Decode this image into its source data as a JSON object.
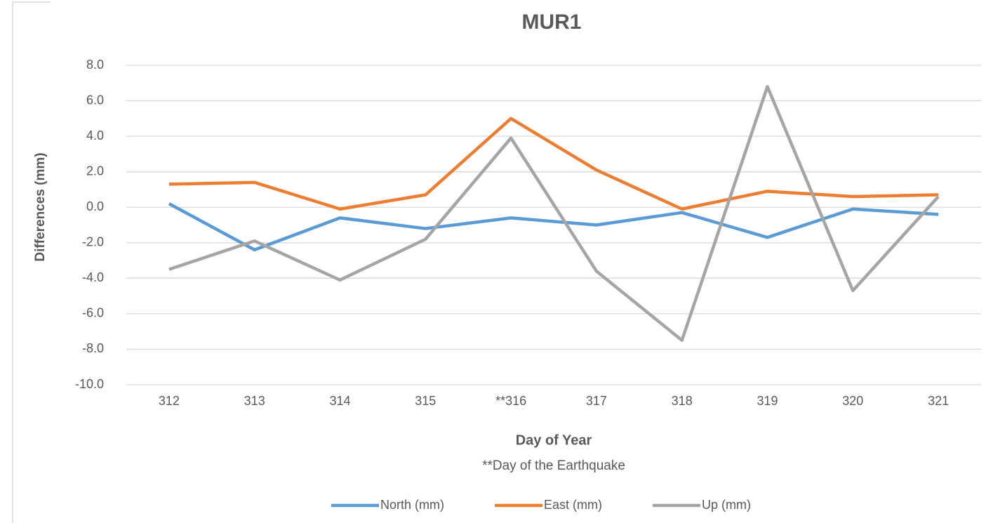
{
  "chart_data": {
    "type": "line",
    "title": "MUR1",
    "x_label": "Day of Year",
    "y_label": "Differences (mm)",
    "annotation": "**Day of the Earthquake",
    "categories": [
      "312",
      "313",
      "314",
      "315",
      "**316",
      "317",
      "318",
      "319",
      "320",
      "321"
    ],
    "series": [
      {
        "name": "North (mm)",
        "color": "#5b9bd5",
        "values": [
          0.2,
          -2.4,
          -0.6,
          -1.2,
          -0.6,
          -1.0,
          -0.3,
          -1.7,
          -0.1,
          -0.4
        ]
      },
      {
        "name": "East (mm)",
        "color": "#ed7d31",
        "values": [
          1.3,
          1.4,
          -0.1,
          0.7,
          5.0,
          2.1,
          -0.1,
          0.9,
          0.6,
          0.7
        ]
      },
      {
        "name": "Up (mm)",
        "color": "#a5a5a5",
        "values": [
          -3.5,
          -1.9,
          -4.1,
          -1.8,
          3.9,
          -3.6,
          -7.5,
          6.8,
          -4.7,
          0.6
        ]
      }
    ],
    "ylim": [
      -10,
      8
    ],
    "yticks": [
      {
        "value": -10,
        "label": "-10.0"
      },
      {
        "value": -8,
        "label": "-8.0"
      },
      {
        "value": -6,
        "label": "-6.0"
      },
      {
        "value": -4,
        "label": "-4.0"
      },
      {
        "value": -2,
        "label": "-2.0"
      },
      {
        "value": 0,
        "label": "0.0"
      },
      {
        "value": 2,
        "label": "2.0"
      },
      {
        "value": 4,
        "label": "4.0"
      },
      {
        "value": 6,
        "label": "6.0"
      },
      {
        "value": 8,
        "label": "8.0"
      }
    ],
    "grid": true,
    "legend": "bottom"
  }
}
